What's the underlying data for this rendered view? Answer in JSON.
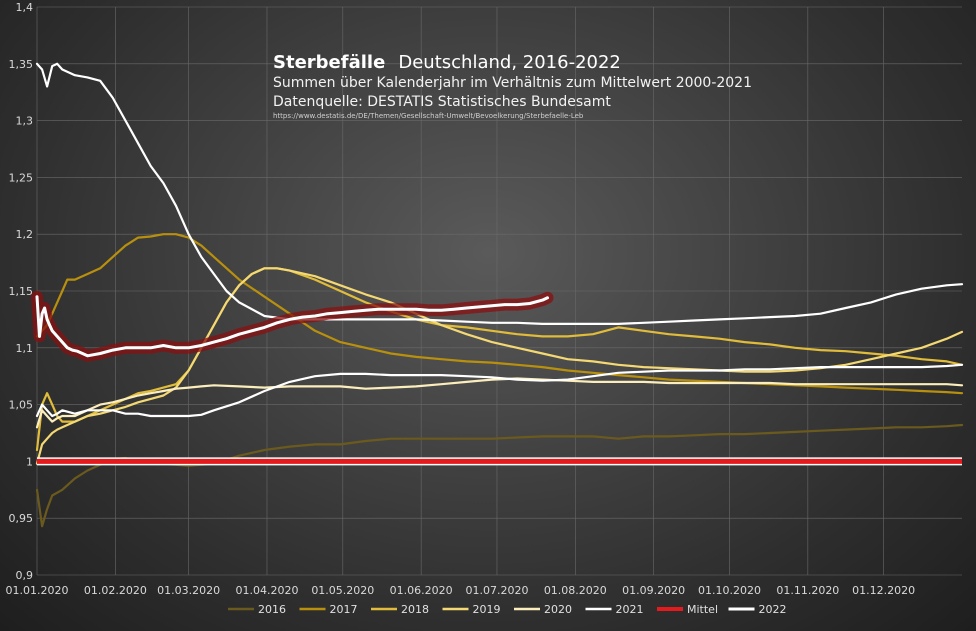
{
  "colors": {
    "2016": "#6b5a1e",
    "2017": "#b8900e",
    "2018": "#e0bc3a",
    "2019": "#f3d873",
    "2020": "#fbeebc",
    "2021": "#ffffff",
    "Mittel": "#e41a1c",
    "2022": "#ffffff",
    "grid": "#6a6a6a",
    "glow": "#8a1010"
  },
  "chart_data": {
    "type": "line",
    "title": "Sterbefälle",
    "title_rest": "Deutschland, 2016-2022",
    "subtitle": "Summen über Kalenderjahr im Verhältnis zum Mittelwert 2000-2021",
    "source": "Datenquelle: DESTATIS Statistisches Bundesamt",
    "url": "https://www.destatis.de/DE/Themen/Gesellschaft-Umwelt/Bevoelkerung/Sterbefaelle-Leb",
    "ylim": [
      0.9,
      1.4
    ],
    "yticks": [
      "0,9",
      "0,95",
      "1",
      "1,05",
      "1,1",
      "1,15",
      "1,2",
      "1,25",
      "1,3",
      "1,35",
      "1,4"
    ],
    "xlim": [
      0,
      366
    ],
    "xtick_labels": [
      "01.01.2020",
      "01.02.2020",
      "01.03.2020",
      "01.04.2020",
      "01.05.2020",
      "01.06.2020",
      "01.07.2020",
      "01.08.2020",
      "01.09.2020",
      "01.10.2020",
      "01.11.2020",
      "01.12.2020"
    ],
    "xtick_days": [
      0,
      31,
      60,
      91,
      121,
      152,
      182,
      213,
      244,
      274,
      305,
      335
    ],
    "legend": [
      "2016",
      "2017",
      "2018",
      "2019",
      "2020",
      "2021",
      "Mittel",
      "2022"
    ],
    "series": [
      {
        "name": "2016",
        "x": [
          0,
          2,
          4,
          6,
          10,
          15,
          20,
          25,
          30,
          35,
          40,
          50,
          60,
          70,
          80,
          90,
          100,
          110,
          120,
          130,
          140,
          150,
          160,
          170,
          180,
          190,
          200,
          210,
          220,
          230,
          240,
          250,
          260,
          270,
          280,
          290,
          300,
          310,
          320,
          330,
          340,
          350,
          360,
          366
        ],
        "y": [
          0.975,
          0.943,
          0.958,
          0.97,
          0.975,
          0.985,
          0.992,
          0.997,
          1.002,
          1.003,
          1.0,
          0.998,
          0.996,
          0.998,
          1.005,
          1.01,
          1.013,
          1.015,
          1.015,
          1.018,
          1.02,
          1.02,
          1.02,
          1.02,
          1.02,
          1.021,
          1.022,
          1.022,
          1.022,
          1.02,
          1.022,
          1.022,
          1.023,
          1.024,
          1.024,
          1.025,
          1.026,
          1.027,
          1.028,
          1.029,
          1.03,
          1.03,
          1.031,
          1.032
        ]
      },
      {
        "name": "2017",
        "x": [
          0,
          2,
          4,
          6,
          8,
          10,
          12,
          15,
          20,
          25,
          30,
          35,
          40,
          45,
          50,
          55,
          60,
          65,
          70,
          80,
          90,
          100,
          110,
          120,
          130,
          140,
          150,
          160,
          170,
          180,
          190,
          200,
          210,
          220,
          230,
          240,
          250,
          260,
          270,
          280,
          290,
          300,
          310,
          320,
          330,
          340,
          350,
          360,
          366
        ],
        "y": [
          1.11,
          1.115,
          1.12,
          1.13,
          1.14,
          1.15,
          1.16,
          1.16,
          1.165,
          1.17,
          1.18,
          1.19,
          1.197,
          1.198,
          1.2,
          1.2,
          1.197,
          1.19,
          1.18,
          1.16,
          1.145,
          1.13,
          1.115,
          1.105,
          1.1,
          1.095,
          1.092,
          1.09,
          1.088,
          1.087,
          1.085,
          1.083,
          1.08,
          1.078,
          1.076,
          1.074,
          1.072,
          1.071,
          1.07,
          1.069,
          1.068,
          1.067,
          1.066,
          1.065,
          1.064,
          1.063,
          1.062,
          1.061,
          1.06
        ]
      },
      {
        "name": "2018",
        "x": [
          0,
          2,
          4,
          6,
          8,
          10,
          15,
          20,
          25,
          30,
          35,
          40,
          45,
          50,
          55,
          60,
          65,
          70,
          75,
          80,
          85,
          90,
          95,
          100,
          110,
          120,
          130,
          140,
          150,
          160,
          170,
          180,
          190,
          200,
          210,
          220,
          230,
          240,
          250,
          260,
          270,
          280,
          290,
          300,
          310,
          320,
          330,
          340,
          350,
          360,
          366
        ],
        "y": [
          1.01,
          1.05,
          1.06,
          1.05,
          1.04,
          1.035,
          1.035,
          1.04,
          1.045,
          1.05,
          1.055,
          1.06,
          1.062,
          1.065,
          1.068,
          1.08,
          1.1,
          1.12,
          1.14,
          1.155,
          1.165,
          1.17,
          1.17,
          1.168,
          1.16,
          1.15,
          1.14,
          1.132,
          1.125,
          1.12,
          1.118,
          1.115,
          1.112,
          1.11,
          1.11,
          1.112,
          1.118,
          1.115,
          1.112,
          1.11,
          1.108,
          1.105,
          1.103,
          1.1,
          1.098,
          1.097,
          1.095,
          1.093,
          1.09,
          1.088,
          1.085
        ]
      },
      {
        "name": "2019",
        "x": [
          0,
          2,
          4,
          6,
          8,
          10,
          15,
          20,
          25,
          30,
          35,
          40,
          45,
          50,
          55,
          60,
          65,
          70,
          75,
          80,
          85,
          90,
          95,
          100,
          110,
          120,
          130,
          140,
          150,
          160,
          170,
          180,
          190,
          200,
          210,
          220,
          230,
          240,
          250,
          260,
          270,
          280,
          290,
          300,
          310,
          320,
          330,
          340,
          350,
          360,
          366
        ],
        "y": [
          0.998,
          1.015,
          1.02,
          1.025,
          1.028,
          1.03,
          1.035,
          1.04,
          1.042,
          1.045,
          1.048,
          1.052,
          1.055,
          1.058,
          1.065,
          1.08,
          1.1,
          1.12,
          1.14,
          1.155,
          1.165,
          1.17,
          1.17,
          1.168,
          1.163,
          1.155,
          1.147,
          1.14,
          1.13,
          1.12,
          1.112,
          1.105,
          1.1,
          1.095,
          1.09,
          1.088,
          1.085,
          1.083,
          1.082,
          1.081,
          1.08,
          1.079,
          1.079,
          1.08,
          1.082,
          1.085,
          1.09,
          1.095,
          1.1,
          1.108,
          1.114
        ]
      },
      {
        "name": "2020",
        "x": [
          0,
          2,
          4,
          6,
          8,
          10,
          15,
          20,
          25,
          30,
          35,
          40,
          45,
          50,
          55,
          60,
          65,
          70,
          80,
          90,
          100,
          110,
          120,
          130,
          140,
          150,
          160,
          170,
          180,
          190,
          200,
          210,
          220,
          230,
          240,
          250,
          260,
          270,
          280,
          290,
          300,
          310,
          320,
          330,
          340,
          350,
          360,
          366
        ],
        "y": [
          1.03,
          1.045,
          1.04,
          1.035,
          1.038,
          1.04,
          1.04,
          1.045,
          1.05,
          1.052,
          1.055,
          1.058,
          1.06,
          1.062,
          1.064,
          1.065,
          1.066,
          1.067,
          1.066,
          1.065,
          1.066,
          1.066,
          1.066,
          1.064,
          1.065,
          1.066,
          1.068,
          1.07,
          1.072,
          1.073,
          1.072,
          1.071,
          1.07,
          1.07,
          1.07,
          1.069,
          1.069,
          1.069,
          1.069,
          1.069,
          1.068,
          1.068,
          1.068,
          1.068,
          1.068,
          1.068,
          1.068,
          1.067
        ]
      },
      {
        "name": "2021",
        "x": [
          0,
          2,
          4,
          6,
          8,
          10,
          15,
          20,
          25,
          30,
          35,
          40,
          45,
          50,
          55,
          60,
          65,
          70,
          80,
          90,
          100,
          110,
          120,
          130,
          140,
          150,
          160,
          170,
          180,
          190,
          200,
          210,
          220,
          230,
          240,
          250,
          260,
          270,
          280,
          290,
          300,
          310,
          320,
          330,
          340,
          350,
          360,
          366
        ],
        "y": [
          1.04,
          1.05,
          1.045,
          1.04,
          1.042,
          1.045,
          1.042,
          1.045,
          1.045,
          1.045,
          1.042,
          1.042,
          1.04,
          1.04,
          1.04,
          1.04,
          1.041,
          1.045,
          1.052,
          1.062,
          1.07,
          1.075,
          1.077,
          1.077,
          1.076,
          1.076,
          1.076,
          1.075,
          1.074,
          1.072,
          1.071,
          1.072,
          1.075,
          1.078,
          1.079,
          1.08,
          1.08,
          1.08,
          1.081,
          1.081,
          1.082,
          1.083,
          1.083,
          1.083,
          1.083,
          1.083,
          1.084,
          1.085
        ]
      },
      {
        "name": "2021 ",
        "x": [
          0,
          2,
          4,
          6,
          8,
          10,
          15,
          20,
          25,
          30,
          35,
          40,
          45,
          50,
          55,
          60,
          65,
          70,
          75,
          80,
          90,
          100,
          110,
          120,
          130,
          140,
          150,
          160,
          170,
          180,
          190,
          200,
          210,
          220,
          230,
          240,
          250,
          260,
          270,
          280,
          290,
          300,
          310,
          320,
          330,
          340,
          350,
          360,
          366
        ],
        "y": [
          1.35,
          1.345,
          1.33,
          1.348,
          1.35,
          1.345,
          1.34,
          1.338,
          1.335,
          1.32,
          1.3,
          1.28,
          1.26,
          1.245,
          1.225,
          1.2,
          1.18,
          1.165,
          1.15,
          1.14,
          1.128,
          1.125,
          1.125,
          1.125,
          1.125,
          1.125,
          1.125,
          1.124,
          1.123,
          1.122,
          1.122,
          1.121,
          1.121,
          1.121,
          1.121,
          1.122,
          1.123,
          1.124,
          1.125,
          1.126,
          1.127,
          1.128,
          1.13,
          1.135,
          1.14,
          1.147,
          1.152,
          1.155,
          1.156
        ]
      },
      {
        "name": "Mittel",
        "x": [
          0,
          366
        ],
        "y": [
          1.0,
          1.0
        ]
      },
      {
        "name": "2022",
        "x": [
          0,
          1,
          2,
          3,
          4,
          5,
          6,
          8,
          10,
          12,
          14,
          16,
          18,
          20,
          25,
          30,
          35,
          40,
          45,
          50,
          55,
          60,
          65,
          70,
          75,
          80,
          85,
          90,
          95,
          100,
          105,
          110,
          115,
          120,
          125,
          130,
          135,
          140,
          145,
          150,
          155,
          160,
          165,
          170,
          175,
          180,
          185,
          190,
          195,
          200,
          202
        ],
        "y": [
          1.145,
          1.11,
          1.13,
          1.135,
          1.125,
          1.12,
          1.115,
          1.11,
          1.105,
          1.1,
          1.098,
          1.097,
          1.095,
          1.093,
          1.095,
          1.098,
          1.1,
          1.1,
          1.1,
          1.102,
          1.1,
          1.1,
          1.102,
          1.105,
          1.108,
          1.112,
          1.115,
          1.118,
          1.122,
          1.125,
          1.127,
          1.128,
          1.13,
          1.131,
          1.132,
          1.133,
          1.134,
          1.134,
          1.134,
          1.134,
          1.133,
          1.133,
          1.134,
          1.135,
          1.136,
          1.137,
          1.138,
          1.138,
          1.139,
          1.142,
          1.144
        ]
      }
    ]
  }
}
